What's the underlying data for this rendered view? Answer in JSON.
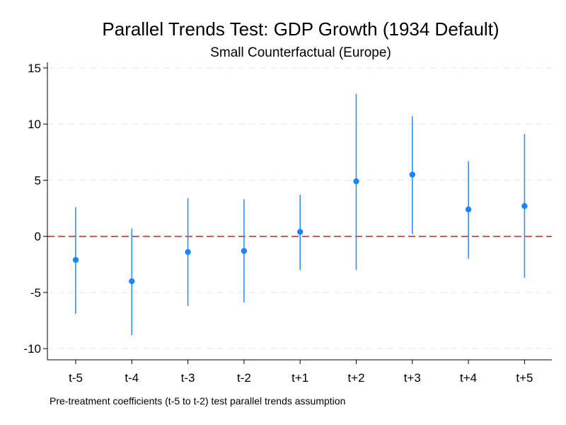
{
  "chart_data": {
    "type": "scatter",
    "title": "Parallel Trends Test: GDP Growth (1934 Default)",
    "subtitle": "Small Counterfactual (Europe)",
    "note": "Pre-treatment coefficients (t-5 to t-2) test parallel trends assumption",
    "categories": [
      "t-5",
      "t-4",
      "t-3",
      "t-2",
      "t+1",
      "t+2",
      "t+3",
      "t+4",
      "t+5"
    ],
    "values": [
      -2.1,
      -4.0,
      -1.4,
      -1.3,
      0.4,
      4.9,
      5.5,
      2.4,
      2.7
    ],
    "ci_lower": [
      -6.9,
      -8.8,
      -6.2,
      -5.9,
      -3.0,
      -3.0,
      0.2,
      -2.0,
      -3.7
    ],
    "ci_upper": [
      2.6,
      0.7,
      3.4,
      3.3,
      3.7,
      12.7,
      10.7,
      6.7,
      9.1
    ],
    "ylim": [
      -11,
      15.5
    ],
    "yticks": [
      -10,
      -5,
      0,
      5,
      10,
      15
    ],
    "ytick_labels": [
      "-10",
      "-5",
      "0",
      "5",
      "10",
      "15"
    ],
    "reference_line": 0,
    "grid": true,
    "colors": {
      "marker": "#1a85ff",
      "ci": "#3a8fe8",
      "reference": "#d62728",
      "grid": "#e6e6e6",
      "axis": "#000000"
    }
  }
}
